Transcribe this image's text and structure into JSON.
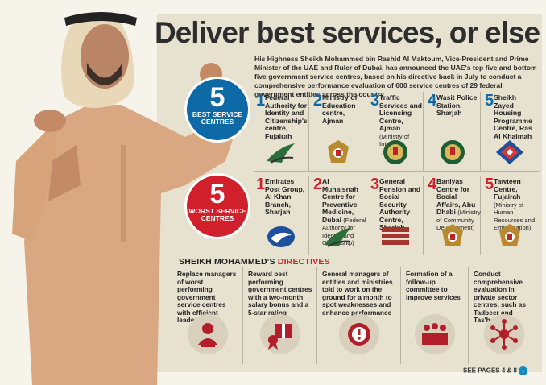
{
  "headline": "Deliver best services, or else",
  "intro": "His Highness Sheikh Mohammed bin Rashid Al Maktoum, Vice-President and Prime Minister of the UAE and Ruler of Dubai, has announced the UAE's top five and bottom five government service centres, based on his directive back in July to conduct a comprehensive performance evaluation of 600 service centres of 29 federal government entities across the country",
  "best_badge": {
    "number": "5",
    "label": "BEST SERVICE CENTRES"
  },
  "worst_badge": {
    "number": "5",
    "label": "WORST SERVICE CENTRES"
  },
  "best": [
    {
      "rank": "1",
      "name": "Federal Authority for Identity and Citizenship's centre, Fujairah",
      "sub": ""
    },
    {
      "rank": "2",
      "name": "Ministry of Education centre, Ajman",
      "sub": ""
    },
    {
      "rank": "3",
      "name": "Traffic Services and Licensing Centre, Ajman",
      "sub": "(Ministry of Interior)"
    },
    {
      "rank": "4",
      "name": "Wasit Police Station, Sharjah",
      "sub": ""
    },
    {
      "rank": "5",
      "name": "Sheikh Zayed Housing Programme Centre, Ras Al Khaimah",
      "sub": ""
    }
  ],
  "worst": [
    {
      "rank": "1",
      "name": "Emirates Post Group, Al Khan Branch, Sharjah",
      "sub": ""
    },
    {
      "rank": "2",
      "name": "Al Muhaisnah Centre for Preventive Medicine, Dubai",
      "sub": "(Federal Authority for Identity and Citizenship)"
    },
    {
      "rank": "3",
      "name": "General Pension and Social Security Authority Centre, Sharjah",
      "sub": ""
    },
    {
      "rank": "4",
      "name": "Baniyas Centre for Social Affairs, Abu Dhabi",
      "sub": "(Ministry of Community Development)"
    },
    {
      "rank": "5",
      "name": "Tawteen Centre, Fujairah",
      "sub": "(Ministry of Human Resources and Emiratisation)"
    }
  ],
  "directives_title": {
    "prefix": "SHEIKH MOHAMMED'S",
    "highlight": "DIRECTIVES"
  },
  "directives": [
    {
      "text": "Replace managers of worst performing government service centres with efficient leaders",
      "icon": "manager-icon"
    },
    {
      "text": "Reward best performing government centres with a two-month salary bonus and a 5-star rating",
      "icon": "gift-award-icon"
    },
    {
      "text": "General managers of entities and ministries told to work on the ground for a month to spot weaknesses and enhance performance",
      "icon": "alert-gear-icon"
    },
    {
      "text": "Formation of a follow-up committee to improve services",
      "icon": "committee-icon"
    },
    {
      "text": "Conduct comprehensive evaluation in private sector centres, such as Tadbeer and Tas'heel",
      "icon": "network-icon"
    }
  ],
  "footer": "SEE PAGES 4 & 8",
  "colors": {
    "blue": "#0d6aa6",
    "red": "#d1202c",
    "panel": "#e7e1cf"
  }
}
